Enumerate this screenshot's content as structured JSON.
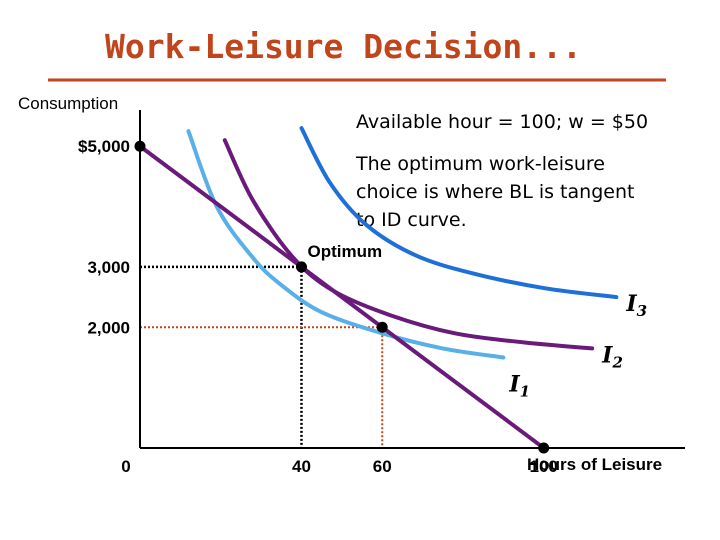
{
  "colors": {
    "title": "#c0441c",
    "rule": "#c0441c",
    "budget_line": "#6a1a7a",
    "i1": "#5aafe8",
    "i2": "#6a1a7a",
    "i3": "#1e6fd8",
    "guide_black": "#000000",
    "guide_orange": "#c0441c"
  },
  "chart_data": {
    "type": "line",
    "title": "Work-Leisure Decision...",
    "ylabel": "Consumption",
    "xlabel": "Hours of Leisure",
    "xlim": [
      0,
      135
    ],
    "ylim": [
      0,
      5600
    ],
    "x_ticks": [
      {
        "value": 0,
        "label": "0"
      },
      {
        "value": 40,
        "label": "40"
      },
      {
        "value": 60,
        "label": "60"
      },
      {
        "value": 100,
        "label": "100"
      }
    ],
    "y_ticks": [
      {
        "value": 2000,
        "label": "2,000"
      },
      {
        "value": 3000,
        "label": "3,000"
      },
      {
        "value": 5000,
        "label": "$5,000"
      }
    ],
    "series": [
      {
        "name": "",
        "role": "budget-line",
        "points": [
          [
            0,
            5000
          ],
          [
            100,
            0
          ]
        ]
      },
      {
        "name": "I1",
        "role": "indifference",
        "points": [
          [
            12,
            5250
          ],
          [
            19,
            4000
          ],
          [
            28,
            3150
          ],
          [
            35,
            2700
          ],
          [
            45,
            2250
          ],
          [
            60,
            1900
          ],
          [
            75,
            1650
          ],
          [
            90,
            1500
          ]
        ]
      },
      {
        "name": "I2",
        "role": "indifference",
        "points": [
          [
            21,
            5100
          ],
          [
            28,
            4100
          ],
          [
            38,
            3150
          ],
          [
            48,
            2600
          ],
          [
            62,
            2200
          ],
          [
            78,
            1900
          ],
          [
            95,
            1750
          ],
          [
            112,
            1650
          ]
        ]
      },
      {
        "name": "I3",
        "role": "indifference",
        "points": [
          [
            40,
            5300
          ],
          [
            47,
            4400
          ],
          [
            56,
            3700
          ],
          [
            68,
            3200
          ],
          [
            82,
            2900
          ],
          [
            100,
            2650
          ],
          [
            118,
            2500
          ]
        ]
      }
    ],
    "points": [
      {
        "x": 0,
        "y": 5000,
        "label": ""
      },
      {
        "x": 40,
        "y": 3000,
        "label": "Optimum"
      },
      {
        "x": 60,
        "y": 2000,
        "label": ""
      },
      {
        "x": 100,
        "y": 0,
        "label": ""
      }
    ],
    "guides": [
      {
        "x": 40,
        "y": 3000,
        "style": "black"
      },
      {
        "x": 60,
        "y": 2000,
        "style": "orange"
      }
    ],
    "annotations": [
      {
        "text": "Available hour = 100; w = $50"
      },
      {
        "lines": [
          "The optimum work-leisure",
          "choice is where BL is tangent",
          "to ID curve."
        ]
      }
    ],
    "curve_labels": [
      {
        "series": "I3",
        "text": "I",
        "sub": "3"
      },
      {
        "series": "I2",
        "text": "I",
        "sub": "2"
      },
      {
        "series": "I1",
        "text": "I",
        "sub": "1"
      }
    ]
  }
}
